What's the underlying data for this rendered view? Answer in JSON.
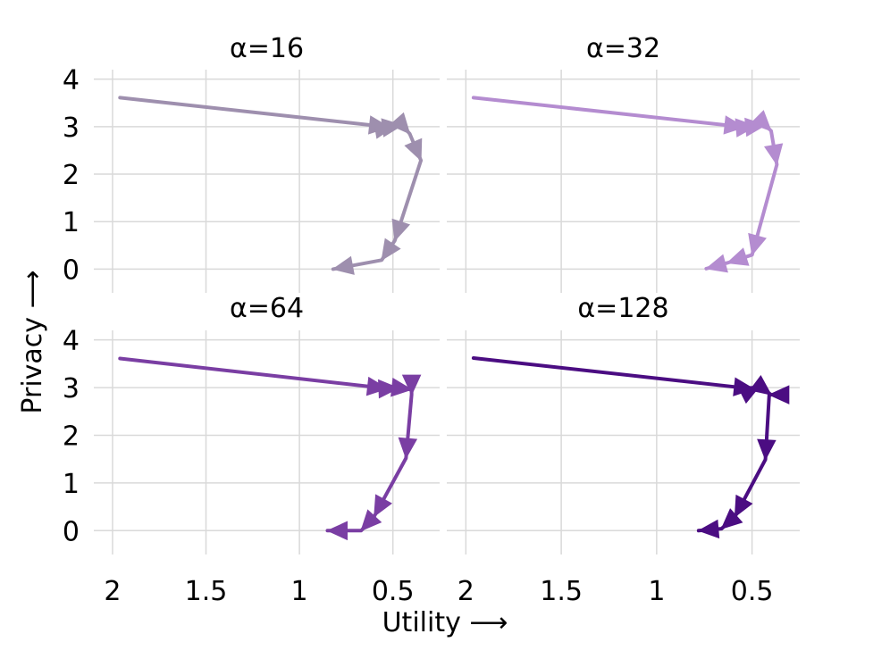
{
  "figure": {
    "xlabel": "Utility ⟶",
    "ylabel": "Privacy ⟶"
  },
  "chart_data": [
    {
      "type": "line",
      "title": "α=16",
      "color": "#9e8fae",
      "x_reversed": true,
      "xlim": [
        2.1,
        0.25
      ],
      "ylim": [
        -0.5,
        4.2
      ],
      "x_ticks": [
        2,
        1.5,
        1,
        0.5
      ],
      "x_tick_labels": [
        "2",
        "1.5",
        "1",
        "0.5"
      ],
      "y_ticks": [
        0,
        1,
        2,
        3,
        4
      ],
      "y_tick_labels": [
        "0",
        "1",
        "2",
        "3",
        "4"
      ],
      "grid": true,
      "x": [
        1.96,
        0.52,
        0.49,
        0.45,
        0.41,
        0.35,
        0.49,
        0.56,
        0.82
      ],
      "y": [
        3.61,
        2.99,
        3.01,
        3.03,
        2.85,
        2.29,
        0.6,
        0.19,
        0.0
      ]
    },
    {
      "type": "line",
      "title": "α=32",
      "color": "#b48cd0",
      "x_reversed": true,
      "xlim": [
        2.1,
        0.25
      ],
      "ylim": [
        -0.5,
        4.2
      ],
      "x_ticks": [
        2,
        1.5,
        1,
        0.5
      ],
      "x_tick_labels": [
        "2",
        "1.5",
        "1",
        "0.5"
      ],
      "y_ticks": [
        0,
        1,
        2,
        3,
        4
      ],
      "y_tick_labels": [
        "0",
        "1",
        "2",
        "3",
        "4"
      ],
      "grid": true,
      "x": [
        1.96,
        0.54,
        0.48,
        0.43,
        0.4,
        0.37,
        0.5,
        0.63,
        0.74
      ],
      "y": [
        3.61,
        2.99,
        3.01,
        3.03,
        2.91,
        2.2,
        0.3,
        0.13,
        0.01
      ]
    },
    {
      "type": "line",
      "title": "α=64",
      "color": "#7a3ea3",
      "x_reversed": true,
      "xlim": [
        2.1,
        0.25
      ],
      "ylim": [
        -0.5,
        4.2
      ],
      "x_ticks": [
        2,
        1.5,
        1,
        0.5
      ],
      "x_tick_labels": [
        "2",
        "1.5",
        "1",
        "0.5"
      ],
      "y_ticks": [
        0,
        1,
        2,
        3,
        4
      ],
      "y_tick_labels": [
        "0",
        "1",
        "2",
        "3",
        "4"
      ],
      "grid": true,
      "x": [
        1.96,
        0.53,
        0.47,
        0.4,
        0.4,
        0.43,
        0.6,
        0.67,
        0.85
      ],
      "y": [
        3.61,
        2.98,
        2.99,
        2.96,
        2.85,
        1.52,
        0.3,
        0.0,
        0.0
      ]
    },
    {
      "type": "line",
      "title": "α=128",
      "color": "#4b0d82",
      "x_reversed": true,
      "xlim": [
        2.1,
        0.25
      ],
      "ylim": [
        -0.5,
        4.2
      ],
      "x_ticks": [
        2,
        1.5,
        1,
        0.5
      ],
      "x_tick_labels": [
        "2",
        "1.5",
        "1",
        "0.5"
      ],
      "y_ticks": [
        0,
        1,
        2,
        3,
        4
      ],
      "y_tick_labels": [
        "0",
        "1",
        "2",
        "3",
        "4"
      ],
      "grid": true,
      "x": [
        1.96,
        0.49,
        0.46,
        0.4,
        0.41,
        0.43,
        0.59,
        0.66,
        0.78
      ],
      "y": [
        3.62,
        2.97,
        3.03,
        2.85,
        2.85,
        1.49,
        0.29,
        0.04,
        0.0
      ]
    }
  ]
}
